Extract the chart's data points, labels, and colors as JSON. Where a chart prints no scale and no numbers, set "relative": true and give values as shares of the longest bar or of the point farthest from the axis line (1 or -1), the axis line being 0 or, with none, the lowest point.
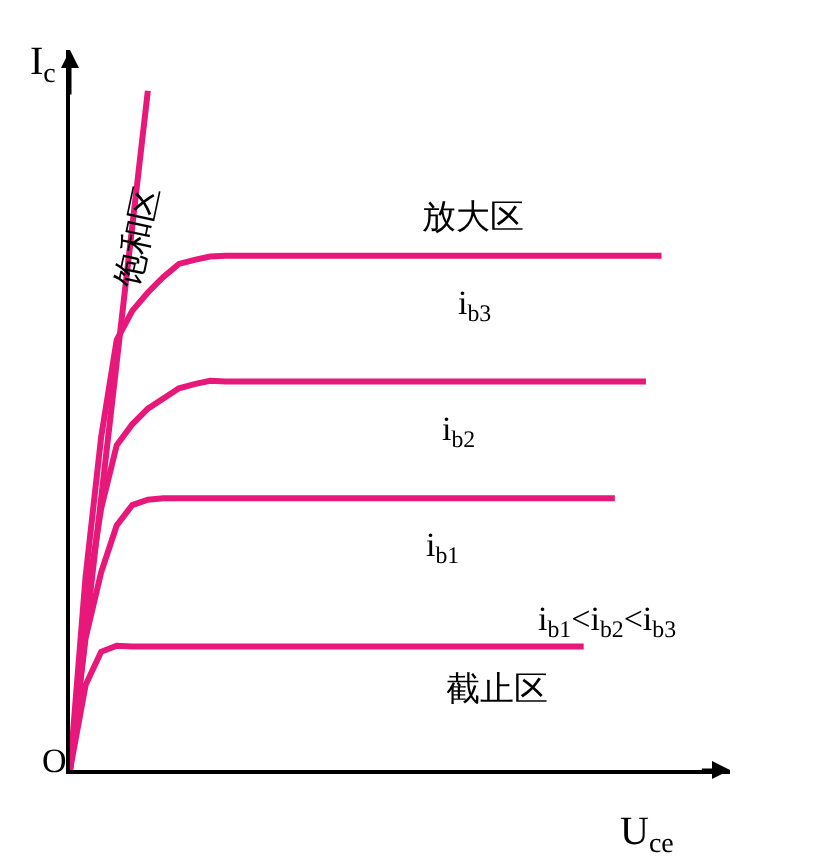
{
  "chart_data": {
    "type": "line",
    "relative": true,
    "xlabel": "U$_{ce}$",
    "ylabel": "I$_{c}$",
    "legend": false,
    "marker": "none",
    "line_style": "solid",
    "categories": [
      null,
      null,
      null,
      null,
      null,
      null,
      null,
      null,
      null,
      null,
      null,
      null,
      null,
      null,
      null,
      null,
      null,
      null,
      null,
      null,
      null,
      null,
      null,
      null,
      null,
      null,
      null,
      null,
      null,
      null,
      null,
      null,
      null,
      null,
      null,
      null,
      null,
      null,
      null,
      null,
      null
    ],
    "series": [
      {
        "color": "#e8177a",
        "values": [
          0,
          0.125,
          0.174,
          0.183,
          0.182,
          0.182,
          0.182,
          0.182,
          0.182,
          0.182,
          0.182,
          0.182,
          0.182,
          0.182,
          0.182,
          0.182,
          0.182,
          0.182,
          0.182,
          0.182,
          0.182,
          0.182,
          0.182,
          0.182,
          0.182,
          0.182,
          0.182,
          0.182,
          0.182,
          0.182,
          0.182,
          0.182,
          0.182,
          0.182,
          null,
          null,
          null,
          null,
          null,
          null,
          null
        ]
      },
      {
        "name": "i$_{b1}$",
        "color": "#e8177a",
        "values": [
          0,
          0.194,
          0.291,
          0.36,
          0.39,
          0.398,
          0.4,
          0.4,
          0.4,
          0.4,
          0.4,
          0.4,
          0.4,
          0.4,
          0.4,
          0.4,
          0.4,
          0.4,
          0.4,
          0.4,
          0.4,
          0.4,
          0.4,
          0.4,
          0.4,
          0.4,
          0.4,
          0.4,
          0.4,
          0.4,
          0.4,
          0.4,
          0.4,
          0.4,
          0.4,
          0.4,
          null,
          null,
          null,
          null,
          null
        ]
      },
      {
        "name": "i$_{b2}$",
        "color": "#e8177a",
        "values": [
          0,
          0.239,
          0.385,
          0.478,
          0.509,
          0.532,
          0.547,
          0.562,
          0.568,
          0.573,
          0.572,
          0.572,
          0.572,
          0.572,
          0.572,
          0.572,
          0.572,
          0.572,
          0.572,
          0.572,
          0.572,
          0.572,
          0.572,
          0.572,
          0.572,
          0.572,
          0.572,
          0.572,
          0.572,
          0.572,
          0.572,
          0.572,
          0.572,
          0.572,
          0.572,
          0.572,
          0.572,
          0.572,
          null,
          null,
          null
        ]
      },
      {
        "name": "i$_{b3}$",
        "color": "#e8177a",
        "values": [
          0,
          0.284,
          0.49,
          0.633,
          0.676,
          0.703,
          0.726,
          0.745,
          0.751,
          0.756,
          0.757,
          0.757,
          0.757,
          0.757,
          0.757,
          0.757,
          0.757,
          0.757,
          0.757,
          0.757,
          0.757,
          0.757,
          0.757,
          0.757,
          0.757,
          0.757,
          0.757,
          0.757,
          0.757,
          0.757,
          0.757,
          0.757,
          0.757,
          0.757,
          0.757,
          0.757,
          0.757,
          0.757,
          0.757,
          null,
          null
        ]
      },
      {
        "color": "#e8177a",
        "values": [
          0,
          0.2,
          0.4,
          0.6,
          0.8,
          1,
          null,
          null,
          null,
          null,
          null,
          null,
          null,
          null,
          null,
          null,
          null,
          null,
          null,
          null,
          null,
          null,
          null,
          null,
          null,
          null,
          null,
          null,
          null,
          null,
          null,
          null,
          null,
          null,
          null,
          null,
          null,
          null,
          null,
          null,
          null
        ]
      }
    ],
    "annotations": [
      "饱和区",
      "放大区",
      "i$_{b1}$<i$_{b2}$<i$_{b3}$",
      "截止区",
      "O"
    ]
  }
}
